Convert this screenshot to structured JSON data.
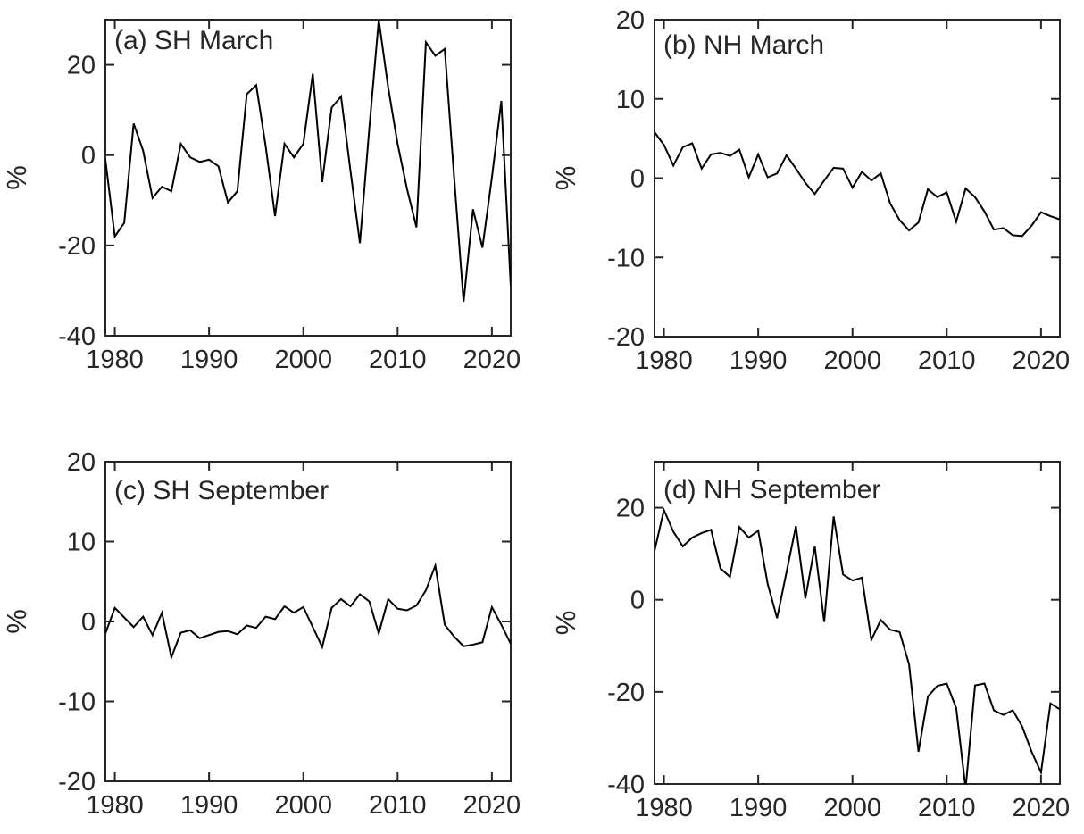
{
  "figure": {
    "background_color": "#ffffff",
    "line_color": "#000000",
    "axis_color": "#262626",
    "text_color": "#262626"
  },
  "chart_data": [
    {
      "type": "line",
      "id": "a",
      "title": "(a) SH March",
      "ylabel": "%",
      "xlabel": "",
      "xlim": [
        1979,
        2022
      ],
      "ylim": [
        -40,
        30
      ],
      "xticks": [
        1980,
        1990,
        2000,
        2010,
        2020
      ],
      "yticks": [
        -40,
        -20,
        0,
        20
      ],
      "grid": false,
      "box": true,
      "legend": null,
      "years": [
        1979,
        1980,
        1981,
        1982,
        1983,
        1984,
        1985,
        1986,
        1987,
        1988,
        1989,
        1990,
        1991,
        1992,
        1993,
        1994,
        1995,
        1996,
        1997,
        1998,
        1999,
        2000,
        2001,
        2002,
        2003,
        2004,
        2005,
        2006,
        2007,
        2008,
        2009,
        2010,
        2011,
        2012,
        2013,
        2014,
        2015,
        2016,
        2017,
        2018,
        2019,
        2020,
        2021,
        2022
      ],
      "values": [
        -1,
        -18,
        -15,
        7,
        1,
        -9.5,
        -7,
        -8,
        2.5,
        -0.5,
        -1.5,
        -1,
        -2.5,
        -10.5,
        -8,
        13.5,
        15.5,
        2,
        -13.5,
        2.5,
        -0.5,
        2.5,
        18,
        -6,
        10.5,
        13,
        -3.5,
        -19.5,
        6,
        30,
        15,
        2.5,
        -7.5,
        -16,
        25,
        22,
        23.5,
        -5,
        -32.5,
        -12,
        -20.5,
        -5,
        12,
        -29
      ]
    },
    {
      "type": "line",
      "id": "b",
      "title": "(b) NH March",
      "ylabel": "%",
      "xlabel": "",
      "xlim": [
        1979,
        2022
      ],
      "ylim": [
        -20,
        20
      ],
      "xticks": [
        1980,
        1990,
        2000,
        2010,
        2020
      ],
      "yticks": [
        -20,
        -10,
        0,
        10,
        20
      ],
      "grid": false,
      "box": true,
      "legend": null,
      "years": [
        1979,
        1980,
        1981,
        1982,
        1983,
        1984,
        1985,
        1986,
        1987,
        1988,
        1989,
        1990,
        1991,
        1992,
        1993,
        1994,
        1995,
        1996,
        1997,
        1998,
        1999,
        2000,
        2001,
        2002,
        2003,
        2004,
        2005,
        2006,
        2007,
        2008,
        2009,
        2010,
        2011,
        2012,
        2013,
        2014,
        2015,
        2016,
        2017,
        2018,
        2019,
        2020,
        2021,
        2022
      ],
      "values": [
        5.8,
        4.2,
        1.6,
        3.9,
        4.4,
        1.2,
        3.0,
        3.2,
        2.8,
        3.6,
        0.1,
        3.0,
        0.1,
        0.6,
        2.9,
        1.2,
        -0.6,
        -2.0,
        -0.3,
        1.3,
        1.2,
        -1.2,
        0.8,
        -0.3,
        0.6,
        -3.2,
        -5.3,
        -6.6,
        -5.6,
        -1.4,
        -2.4,
        -1.8,
        -5.5,
        -1.3,
        -2.4,
        -4.2,
        -6.5,
        -6.3,
        -7.2,
        -7.3,
        -6.0,
        -4.3,
        -4.8,
        -5.2
      ]
    },
    {
      "type": "line",
      "id": "c",
      "title": "(c) SH September",
      "ylabel": "%",
      "xlabel": "",
      "xlim": [
        1979,
        2022
      ],
      "ylim": [
        -20,
        20
      ],
      "xticks": [
        1980,
        1990,
        2000,
        2010,
        2020
      ],
      "yticks": [
        -20,
        -10,
        0,
        10,
        20
      ],
      "grid": false,
      "box": true,
      "legend": null,
      "years": [
        1979,
        1980,
        1981,
        1982,
        1983,
        1984,
        1985,
        1986,
        1987,
        1988,
        1989,
        1990,
        1991,
        1992,
        1993,
        1994,
        1995,
        1996,
        1997,
        1998,
        1999,
        2000,
        2001,
        2002,
        2003,
        2004,
        2005,
        2006,
        2007,
        2008,
        2009,
        2010,
        2011,
        2012,
        2013,
        2014,
        2015,
        2016,
        2017,
        2018,
        2019,
        2020,
        2021,
        2022
      ],
      "values": [
        -1.5,
        1.7,
        0.5,
        -0.7,
        0.6,
        -1.7,
        1.1,
        -4.5,
        -1.4,
        -1.1,
        -2.1,
        -1.7,
        -1.3,
        -1.2,
        -1.6,
        -0.5,
        -0.8,
        0.6,
        0.3,
        1.9,
        1.1,
        1.8,
        -0.7,
        -3.2,
        1.7,
        2.8,
        1.9,
        3.4,
        2.5,
        -1.5,
        2.8,
        1.6,
        1.4,
        2.0,
        3.9,
        7.0,
        -0.4,
        -1.9,
        -3.1,
        -2.9,
        -2.6,
        1.8,
        -0.4,
        -2.8
      ]
    },
    {
      "type": "line",
      "id": "d",
      "title": "(d) NH September",
      "ylabel": "%",
      "xlabel": "",
      "xlim": [
        1979,
        2022
      ],
      "ylim": [
        -40,
        30
      ],
      "xticks": [
        1980,
        1990,
        2000,
        2010,
        2020
      ],
      "yticks": [
        -40,
        -20,
        0,
        20
      ],
      "grid": false,
      "box": true,
      "legend": null,
      "years": [
        1979,
        1980,
        1981,
        1982,
        1983,
        1984,
        1985,
        1986,
        1987,
        1988,
        1989,
        1990,
        1991,
        1992,
        1993,
        1994,
        1995,
        1996,
        1997,
        1998,
        1999,
        2000,
        2001,
        2002,
        2003,
        2004,
        2005,
        2006,
        2007,
        2008,
        2009,
        2010,
        2011,
        2012,
        2013,
        2014,
        2015,
        2016,
        2017,
        2018,
        2019,
        2020,
        2021,
        2022
      ],
      "values": [
        10.6,
        19.5,
        14.8,
        11.6,
        13.5,
        14.5,
        15.2,
        6.8,
        5.0,
        15.8,
        13.5,
        15.0,
        3.5,
        -4.0,
        6.0,
        16.0,
        0.3,
        11.6,
        -4.8,
        18.1,
        5.5,
        4.2,
        4.8,
        -8.7,
        -4.4,
        -6.5,
        -7.0,
        -14.0,
        -33.0,
        -21.0,
        -18.7,
        -18.2,
        -23.5,
        -41.0,
        -18.6,
        -18.2,
        -24.0,
        -25.0,
        -24.0,
        -27.5,
        -33.0,
        -37.5,
        -22.5,
        -23.8
      ]
    }
  ]
}
